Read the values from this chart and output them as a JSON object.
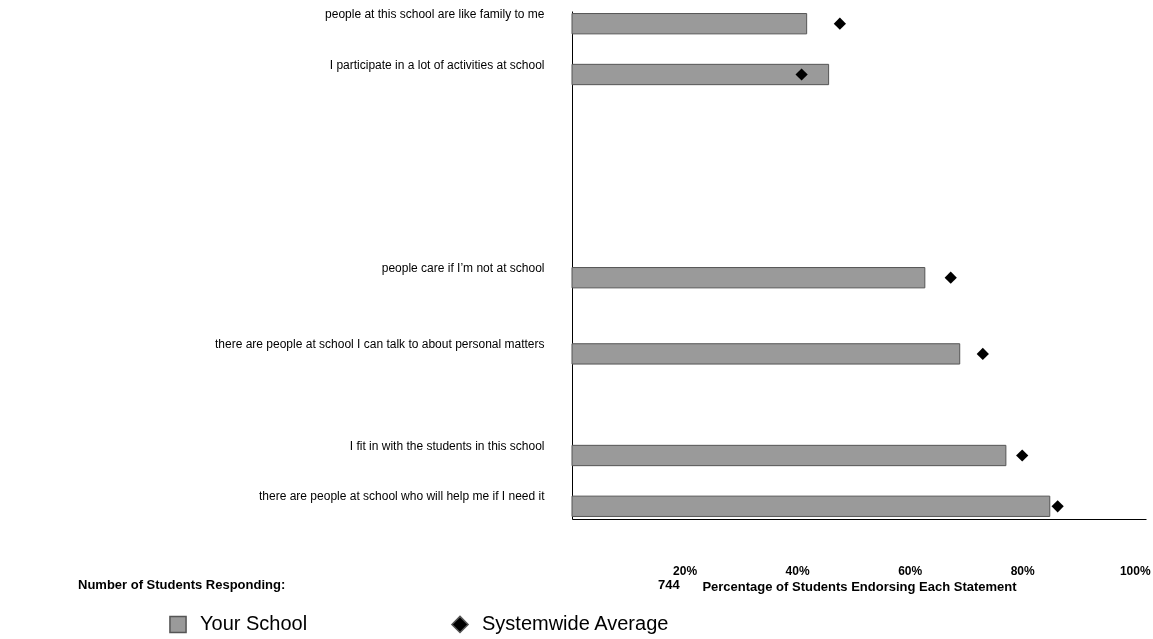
{
  "chart_data": {
    "type": "bar",
    "orientation": "horizontal",
    "xlabel": "Percentage of Students Endorsing Each Statement",
    "categories": [
      "people at this school are like family to me",
      null,
      "I participate in a lot of activities at school",
      null,
      null,
      null,
      null,
      null,
      null,
      null,
      "people care if I’m not at school",
      null,
      null,
      "there are people at school I can talk to about personal matters",
      null,
      null,
      null,
      "I fit in with the students in this school",
      null,
      "there are people at school who will help me if I need it"
    ],
    "series": [
      {
        "name": "Your School",
        "type": "bar",
        "color": "#9a9a9a",
        "values": [
          41.7,
          null,
          45.6,
          null,
          null,
          null,
          null,
          null,
          null,
          null,
          62.7,
          null,
          null,
          68.9,
          null,
          null,
          null,
          77.1,
          null,
          84.9
        ]
      },
      {
        "name": "Systemwide Average",
        "type": "scatter",
        "color": "#000000",
        "values": [
          47.6,
          null,
          40.8,
          null,
          null,
          null,
          null,
          null,
          null,
          null,
          67.3,
          null,
          null,
          73.0,
          null,
          null,
          null,
          80.0,
          null,
          86.3
        ]
      }
    ],
    "xlim": [
      0,
      102
    ],
    "xticks": [
      {
        "value": 20,
        "label": "20%"
      },
      {
        "value": 40,
        "label": "40%"
      },
      {
        "value": 60,
        "label": "60%"
      },
      {
        "value": 80,
        "label": "80%"
      },
      {
        "value": 100,
        "label": "100%"
      }
    ],
    "marker": "diamond",
    "grid": false,
    "legend": "bottom",
    "annotations": [
      "Number of Students Responding:",
      "744"
    ]
  }
}
